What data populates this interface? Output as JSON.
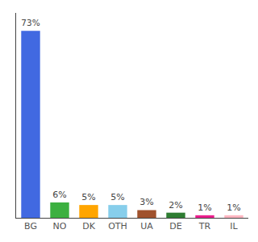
{
  "chart_data": {
    "type": "bar",
    "categories": [
      "BG",
      "NO",
      "DK",
      "OTH",
      "UA",
      "DE",
      "TR",
      "IL"
    ],
    "values": [
      73,
      6,
      5,
      5,
      3,
      2,
      1,
      1
    ],
    "value_labels": [
      "73%",
      "6%",
      "5%",
      "5%",
      "3%",
      "2%",
      "1%",
      "1%"
    ],
    "colors": [
      "#4169e1",
      "#3cb040",
      "#ffa500",
      "#87ceeb",
      "#a0522d",
      "#2e7d32",
      "#e91e8c",
      "#ffb6c1"
    ],
    "ylim": [
      0,
      80
    ],
    "data_labels": true,
    "tick_labels": "x",
    "grid": false
  }
}
